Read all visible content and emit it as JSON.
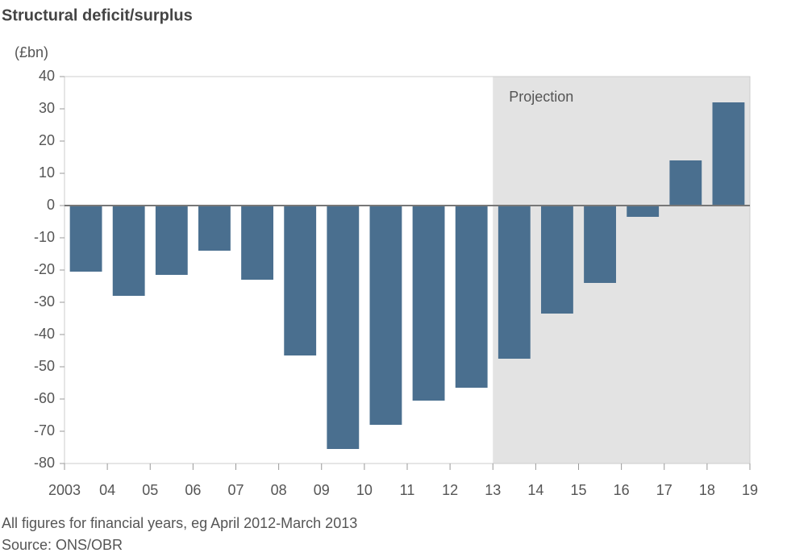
{
  "chart_data": {
    "type": "bar",
    "title": "Structural deficit/surplus",
    "y_label": "(£bn)",
    "x": [
      2003,
      2004,
      2005,
      2006,
      2007,
      2008,
      2009,
      2010,
      2011,
      2012,
      2013,
      2014,
      2015,
      2016,
      2017,
      2018
    ],
    "values": [
      -20.5,
      -28,
      -21.5,
      -14,
      -23,
      -46.5,
      -75.5,
      -68,
      -60.5,
      -56.5,
      -47.5,
      -33.5,
      -24,
      -3.5,
      14,
      32
    ],
    "color": "#4a6f8f",
    "xlim": [
      2003,
      2019
    ],
    "xticks": [
      {
        "value": 2003,
        "label": "2003"
      },
      {
        "value": 2004,
        "label": "04"
      },
      {
        "value": 2005,
        "label": "05"
      },
      {
        "value": 2006,
        "label": "06"
      },
      {
        "value": 2007,
        "label": "07"
      },
      {
        "value": 2008,
        "label": "08"
      },
      {
        "value": 2009,
        "label": "09"
      },
      {
        "value": 2010,
        "label": "10"
      },
      {
        "value": 2011,
        "label": "11"
      },
      {
        "value": 2012,
        "label": "12"
      },
      {
        "value": 2013,
        "label": "13"
      },
      {
        "value": 2014,
        "label": "14"
      },
      {
        "value": 2015,
        "label": "15"
      },
      {
        "value": 2016,
        "label": "16"
      },
      {
        "value": 2017,
        "label": "17"
      },
      {
        "value": 2018,
        "label": "18"
      },
      {
        "value": 2019,
        "label": "19"
      }
    ],
    "ylim": [
      -80,
      40
    ],
    "yticks": [
      -80,
      -70,
      -60,
      -50,
      -40,
      -30,
      -20,
      -10,
      0,
      10,
      20,
      30,
      40
    ],
    "shaded_region": {
      "from": 2013,
      "to": 2019,
      "label": "Projection",
      "color": "#e3e3e3"
    },
    "footnotes": [
      "All figures for financial years, eg April 2012-March 2013",
      "Source: ONS/OBR"
    ]
  }
}
